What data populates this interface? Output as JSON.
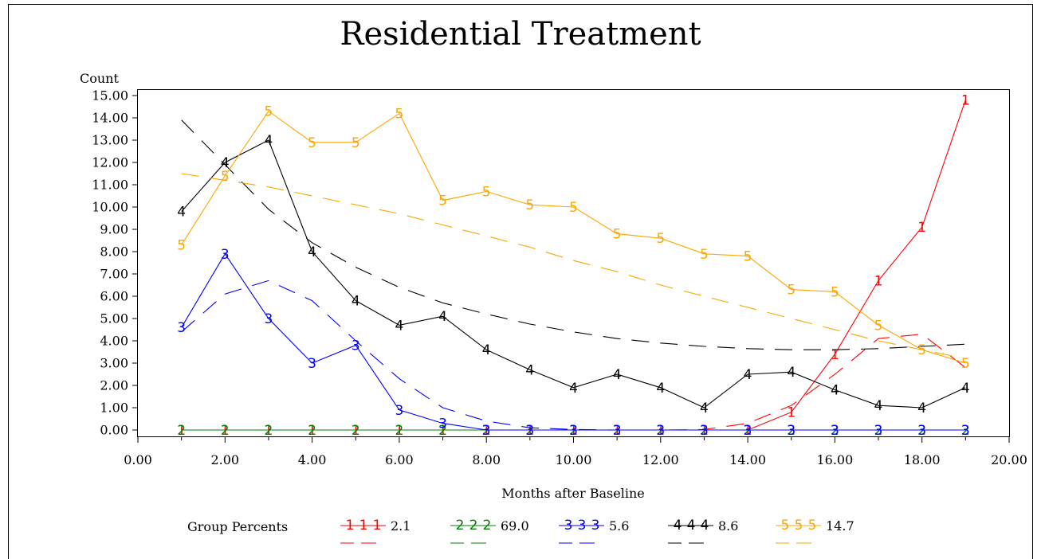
{
  "chart_data": {
    "type": "line",
    "title": "Residential Treatment",
    "ylabel": "Count",
    "xlabel": "Months after Baseline",
    "xlim": [
      0,
      20
    ],
    "ylim": [
      0,
      15
    ],
    "x_ticks": [
      "0.00",
      "2.00",
      "4.00",
      "6.00",
      "8.00",
      "10.00",
      "12.00",
      "14.00",
      "16.00",
      "18.00",
      "20.00"
    ],
    "y_ticks": [
      "0.00",
      "1.00",
      "2.00",
      "3.00",
      "4.00",
      "5.00",
      "6.00",
      "7.00",
      "8.00",
      "9.00",
      "10.00",
      "11.00",
      "12.00",
      "13.00",
      "14.00",
      "15.00"
    ],
    "legend_title": "Group Percents",
    "legend_position": "bottom",
    "x": [
      1,
      2,
      3,
      4,
      5,
      6,
      7,
      8,
      9,
      10,
      11,
      12,
      13,
      14,
      15,
      16,
      17,
      18,
      19
    ],
    "series": [
      {
        "name": "2.1",
        "marker": "1",
        "color": "#ff0000",
        "observed": [
          0,
          0,
          0,
          0,
          0,
          0,
          0,
          0,
          0,
          0,
          0,
          0,
          0,
          0,
          0.8,
          3.4,
          6.7,
          9.1,
          14.8
        ],
        "fitted": [
          0,
          0,
          0,
          0,
          0,
          0,
          0,
          0,
          0,
          0,
          0,
          0,
          0.02,
          0.3,
          1.1,
          2.5,
          4.1,
          4.3,
          2.8
        ]
      },
      {
        "name": "69.0",
        "marker": "2",
        "color": "#008000",
        "observed": [
          0,
          0,
          0,
          0,
          0,
          0,
          0,
          0,
          0,
          0,
          0,
          0,
          0,
          0,
          0,
          0,
          0,
          0,
          0
        ],
        "fitted": [
          0,
          0,
          0,
          0,
          0,
          0,
          0,
          0,
          0,
          0,
          0,
          0,
          0,
          0,
          0,
          0,
          0,
          0,
          0
        ]
      },
      {
        "name": "5.6",
        "marker": "3",
        "color": "#0000ff",
        "observed": [
          4.6,
          7.9,
          5.0,
          3.0,
          3.8,
          0.9,
          0.3,
          0,
          0,
          0,
          0,
          0,
          0,
          0,
          0,
          0,
          0,
          0,
          0
        ],
        "fitted": [
          4.4,
          6.1,
          6.7,
          5.8,
          4.0,
          2.3,
          1.0,
          0.4,
          0.1,
          0.02,
          0,
          0,
          0,
          0,
          0,
          0,
          0,
          0,
          0
        ]
      },
      {
        "name": "8.6",
        "marker": "4",
        "color": "#000000",
        "observed": [
          9.8,
          12.0,
          13.0,
          8.0,
          5.8,
          4.7,
          5.1,
          3.6,
          2.7,
          1.9,
          2.5,
          1.9,
          1.0,
          2.5,
          2.6,
          1.8,
          1.1,
          1.0,
          1.9
        ],
        "fitted": [
          13.9,
          11.9,
          9.9,
          8.4,
          7.3,
          6.4,
          5.7,
          5.2,
          4.75,
          4.4,
          4.1,
          3.9,
          3.75,
          3.65,
          3.6,
          3.6,
          3.65,
          3.75,
          3.85
        ]
      },
      {
        "name": "14.7",
        "marker": "5",
        "color": "#ffa500",
        "observed": [
          8.3,
          11.4,
          14.3,
          12.9,
          12.9,
          14.2,
          10.3,
          10.7,
          10.1,
          10.0,
          8.8,
          8.6,
          7.9,
          7.8,
          6.3,
          6.2,
          4.7,
          3.6,
          3.0
        ],
        "fitted": [
          11.5,
          11.2,
          10.9,
          10.5,
          10.1,
          9.7,
          9.2,
          8.7,
          8.2,
          7.6,
          7.1,
          6.5,
          6.0,
          5.5,
          5.0,
          4.5,
          4.0,
          3.6,
          3.2
        ]
      }
    ]
  }
}
